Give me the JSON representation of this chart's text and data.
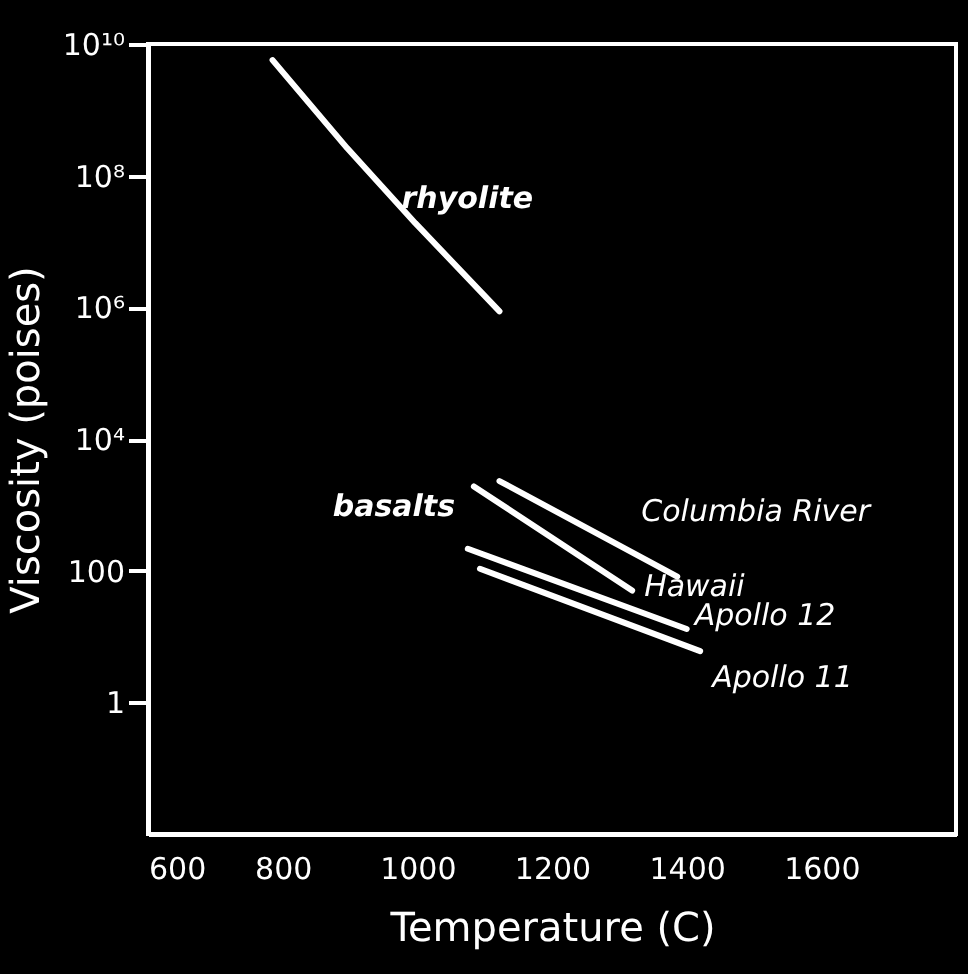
{
  "chart_data": {
    "type": "line",
    "xlabel": "Temperature (C)",
    "ylabel": "Viscosity (poises)",
    "log": "y",
    "xlim": [
      600,
      1800
    ],
    "xticks": [
      600,
      800,
      1000,
      1200,
      1400,
      1600
    ],
    "line_style": "solid",
    "ylim": [
      0.01,
      10000000000.0
    ],
    "yticks": [
      1,
      100,
      {
        "value": 10000,
        "label": "10⁴"
      },
      {
        "value": 1000000,
        "label": "10⁶"
      },
      {
        "value": 100000000,
        "label": "10⁸"
      },
      {
        "value": 10000000000,
        "label": "10¹⁰"
      }
    ],
    "grid": false,
    "series": [
      {
        "name": "rhyolite",
        "color": "#ffffff",
        "x": [
          785,
          896,
          997,
          1122
        ],
        "values": [
          5700000000,
          260000000,
          19000000,
          870000
        ]
      },
      {
        "name": "Columbia River",
        "color": "#ffffff",
        "x": [
          1122,
          1386
        ],
        "values": [
          2300,
          81
        ]
      },
      {
        "name": "Hawaii",
        "color": "#ffffff",
        "x": [
          1084,
          1319
        ],
        "values": [
          1900,
          50
        ]
      },
      {
        "name": "Apollo 12",
        "color": "#ffffff",
        "x": [
          1075,
          1400
        ],
        "values": [
          215,
          13
        ]
      },
      {
        "name": "Apollo 11",
        "color": "#ffffff",
        "x": [
          1093,
          1420
        ],
        "values": [
          107,
          6
        ]
      }
    ],
    "annotations": [
      "basalts"
    ]
  }
}
